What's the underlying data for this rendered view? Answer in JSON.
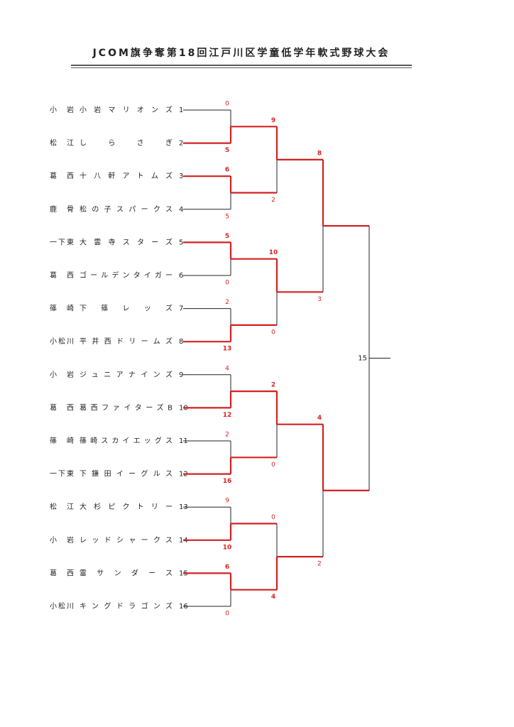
{
  "title": "JCOM旗争奪第18回江戸川区学童低学年軟式野球大会",
  "teams": [
    {
      "area": "小岩",
      "name": "小岩マリオンズ",
      "seed": 1
    },
    {
      "area": "松江",
      "name": "しらさぎ",
      "seed": 2
    },
    {
      "area": "葛西",
      "name": "十八軒アトムズ",
      "seed": 3
    },
    {
      "area": "鹿骨",
      "name": "松の子スパークス",
      "seed": 4
    },
    {
      "area": "一下東",
      "name": "大雲寺スターズ",
      "seed": 5
    },
    {
      "area": "葛西",
      "name": "ゴールデンタイガー",
      "seed": 6
    },
    {
      "area": "篠崎",
      "name": "下篠レッズ",
      "seed": 7
    },
    {
      "area": "小松川",
      "name": "平井西ドリームズ",
      "seed": 8
    },
    {
      "area": "小岩",
      "name": "ジュニアナインズ",
      "seed": 9
    },
    {
      "area": "葛西",
      "name": "葛西ファイターズB",
      "seed": 10
    },
    {
      "area": "篠崎",
      "name": "篠崎スカイエッグス",
      "seed": 11
    },
    {
      "area": "一下東",
      "name": "下鎌田イーグルス",
      "seed": 12
    },
    {
      "area": "松江",
      "name": "大杉ピクトリー",
      "seed": 13
    },
    {
      "area": "小岩",
      "name": "レッドシャークス",
      "seed": 14
    },
    {
      "area": "葛西",
      "name": "雷サンダース",
      "seed": 15
    },
    {
      "area": "小松川",
      "name": "キングドラゴンズ",
      "seed": 16
    }
  ],
  "rounds": [
    {
      "matches": [
        {
          "scores": [
            0,
            5
          ]
        },
        {
          "scores": [
            6,
            5
          ]
        },
        {
          "scores": [
            5,
            0
          ]
        },
        {
          "scores": [
            2,
            13
          ]
        },
        {
          "scores": [
            4,
            12
          ]
        },
        {
          "scores": [
            2,
            16
          ]
        },
        {
          "scores": [
            9,
            10
          ]
        },
        {
          "scores": [
            6,
            0
          ]
        }
      ]
    },
    {
      "matches": [
        {
          "scores": [
            9,
            2
          ]
        },
        {
          "scores": [
            10,
            0
          ]
        },
        {
          "scores": [
            2,
            0
          ]
        },
        {
          "scores": [
            0,
            4
          ]
        }
      ]
    },
    {
      "matches": [
        {
          "scores": [
            8,
            3
          ]
        },
        {
          "scores": [
            4,
            2
          ]
        }
      ]
    }
  ],
  "final": {
    "match_no": 15
  }
}
